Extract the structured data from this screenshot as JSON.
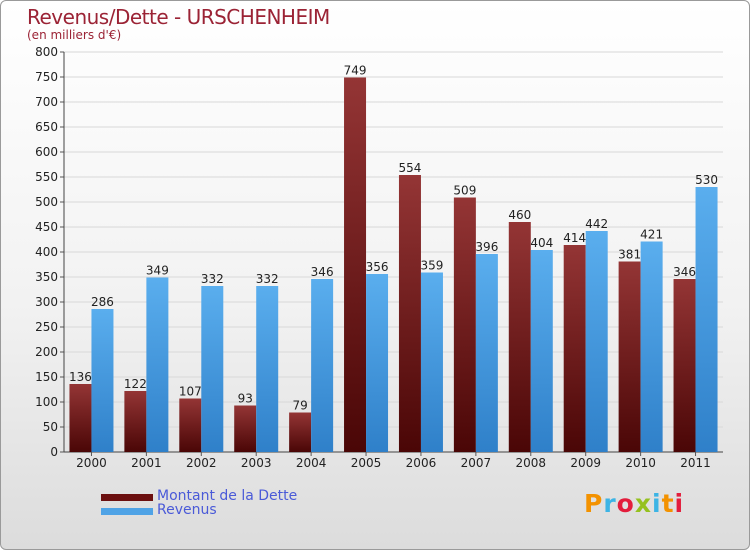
{
  "header": {
    "title": "Revenus/Dette - URSCHENHEIM",
    "subtitle": "(en milliers d'€)"
  },
  "logo": {
    "text": "Proxiti",
    "colors": [
      "#f39200",
      "#3cb4e5",
      "#e31d3c",
      "#95c11f",
      "#3cb4e5",
      "#f39200",
      "#e31d3c"
    ]
  },
  "chart_data": {
    "type": "bar",
    "categories": [
      "2000",
      "2001",
      "2002",
      "2003",
      "2004",
      "2005",
      "2006",
      "2007",
      "2008",
      "2009",
      "2010",
      "2011"
    ],
    "series": [
      {
        "name": "Montant de la Dette",
        "color": "#7a1e1e",
        "values": [
          136,
          122,
          107,
          93,
          79,
          749,
          554,
          509,
          460,
          414,
          381,
          346
        ]
      },
      {
        "name": "Revenus",
        "color": "#4fa3e6",
        "values": [
          286,
          349,
          332,
          332,
          346,
          356,
          359,
          396,
          404,
          442,
          421,
          530
        ]
      }
    ],
    "ylim": [
      0,
      800
    ],
    "yticks": [
      0,
      50,
      100,
      150,
      200,
      250,
      300,
      350,
      400,
      450,
      500,
      550,
      600,
      650,
      700,
      750,
      800
    ],
    "grid": true,
    "legend": "bottom-left",
    "xlabel": "",
    "ylabel": ""
  }
}
